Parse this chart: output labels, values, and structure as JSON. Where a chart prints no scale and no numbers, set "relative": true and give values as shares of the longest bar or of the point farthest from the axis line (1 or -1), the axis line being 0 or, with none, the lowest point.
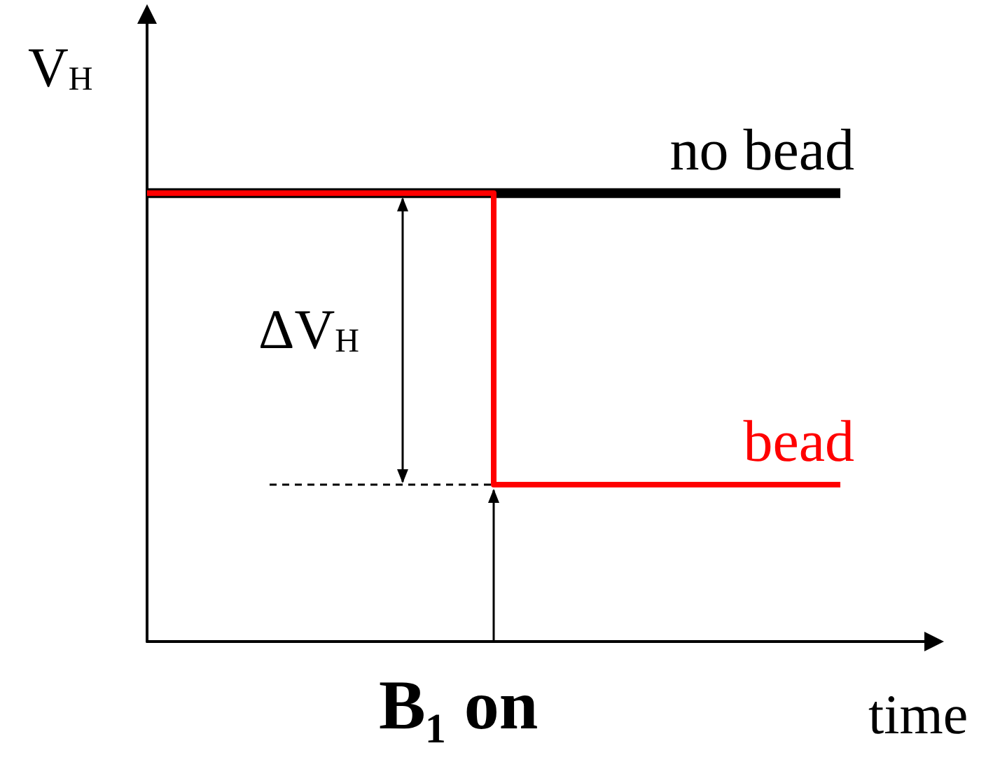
{
  "chart_data": {
    "type": "step",
    "relative": true,
    "categories": [
      null,
      null,
      null
    ],
    "xlabel": "time",
    "ylabel": "V$_{H}$",
    "series": [
      {
        "name": "no bead",
        "color": "#000000",
        "values": [
          1,
          1,
          1
        ]
      },
      {
        "name": "bead",
        "color": "#ff0000",
        "values": [
          1,
          0.35,
          0.35
        ]
      }
    ],
    "annotations": [
      "ΔV$_{H}$",
      "B₁ on"
    ],
    "grid": false,
    "legend": false,
    "marker": "none"
  }
}
